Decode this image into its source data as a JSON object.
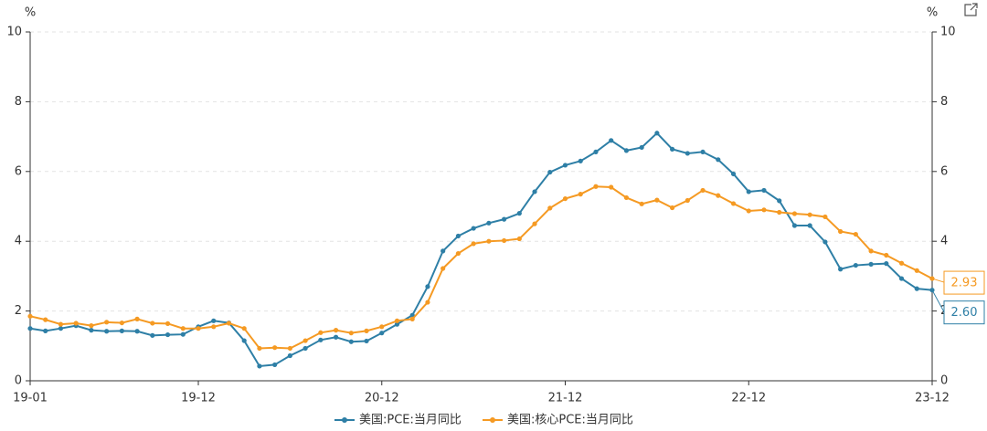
{
  "chart_data": {
    "type": "line",
    "y_unit": "%",
    "y2_unit": "%",
    "categories": [
      "19-01",
      null,
      null,
      null,
      null,
      null,
      null,
      null,
      null,
      null,
      null,
      "19-12",
      null,
      null,
      null,
      null,
      null,
      null,
      null,
      null,
      null,
      null,
      null,
      "20-12",
      null,
      null,
      null,
      null,
      null,
      null,
      null,
      null,
      null,
      null,
      null,
      "21-12",
      null,
      null,
      null,
      null,
      null,
      null,
      null,
      null,
      null,
      null,
      null,
      "22-12",
      null,
      null,
      null,
      null,
      null,
      null,
      null,
      null,
      null,
      null,
      null,
      "23-12"
    ],
    "series": [
      {
        "name": "美国:PCE:当月同比",
        "color": "#2e7fa6",
        "values": [
          1.5,
          1.43,
          1.5,
          1.58,
          1.45,
          1.42,
          1.43,
          1.42,
          1.3,
          1.32,
          1.33,
          1.55,
          1.72,
          1.66,
          1.15,
          0.42,
          0.46,
          0.72,
          0.93,
          1.17,
          1.25,
          1.12,
          1.14,
          1.37,
          1.62,
          1.88,
          2.7,
          3.72,
          4.15,
          4.37,
          4.52,
          4.63,
          4.8,
          5.42,
          5.98,
          6.18,
          6.3,
          6.56,
          6.89,
          6.6,
          6.69,
          7.1,
          6.64,
          6.52,
          6.56,
          6.34,
          5.93,
          5.42,
          5.46,
          5.16,
          4.45,
          4.45,
          3.98,
          3.2,
          3.31,
          3.34,
          3.36,
          2.93,
          2.64,
          2.6
        ],
        "value_labels": [
          null,
          null,
          null,
          null,
          null,
          null,
          null,
          null,
          null,
          null,
          null,
          null,
          null,
          null,
          null,
          null,
          null,
          null,
          null,
          null,
          null,
          null,
          null,
          null,
          null,
          null,
          null,
          null,
          null,
          null,
          null,
          null,
          null,
          null,
          null,
          null,
          null,
          null,
          null,
          null,
          null,
          null,
          null,
          null,
          null,
          null,
          null,
          null,
          null,
          null,
          null,
          null,
          null,
          null,
          null,
          null,
          null,
          null,
          null,
          "2.60"
        ]
      },
      {
        "name": "美国:核心PCE:当月同比",
        "color": "#f59a23",
        "values": [
          1.85,
          1.75,
          1.62,
          1.65,
          1.58,
          1.68,
          1.66,
          1.77,
          1.65,
          1.64,
          1.5,
          1.5,
          1.55,
          1.65,
          1.5,
          0.93,
          0.95,
          0.93,
          1.15,
          1.38,
          1.45,
          1.37,
          1.43,
          1.55,
          1.72,
          1.77,
          2.25,
          3.22,
          3.65,
          3.93,
          4.0,
          4.02,
          4.07,
          4.5,
          4.95,
          5.22,
          5.35,
          5.57,
          5.55,
          5.25,
          5.07,
          5.18,
          4.96,
          5.17,
          5.46,
          5.31,
          5.08,
          4.87,
          4.9,
          4.83,
          4.79,
          4.76,
          4.7,
          4.28,
          4.2,
          3.72,
          3.6,
          3.37,
          3.16,
          2.93
        ],
        "value_labels": [
          null,
          null,
          null,
          null,
          null,
          null,
          null,
          null,
          null,
          null,
          null,
          null,
          null,
          null,
          null,
          null,
          null,
          null,
          null,
          null,
          null,
          null,
          null,
          null,
          null,
          null,
          null,
          null,
          null,
          null,
          null,
          null,
          null,
          null,
          null,
          null,
          null,
          null,
          null,
          null,
          null,
          null,
          null,
          null,
          null,
          null,
          null,
          null,
          null,
          null,
          null,
          null,
          null,
          null,
          null,
          null,
          null,
          null,
          null,
          "2.93"
        ]
      }
    ],
    "ylim": [
      0,
      10
    ],
    "yticks": [
      0,
      2,
      4,
      6,
      8,
      10
    ],
    "y2lim": [
      0,
      10
    ],
    "y2ticks": [
      0,
      2,
      4,
      6,
      8,
      10
    ],
    "grid": true,
    "legend": "bottom"
  }
}
